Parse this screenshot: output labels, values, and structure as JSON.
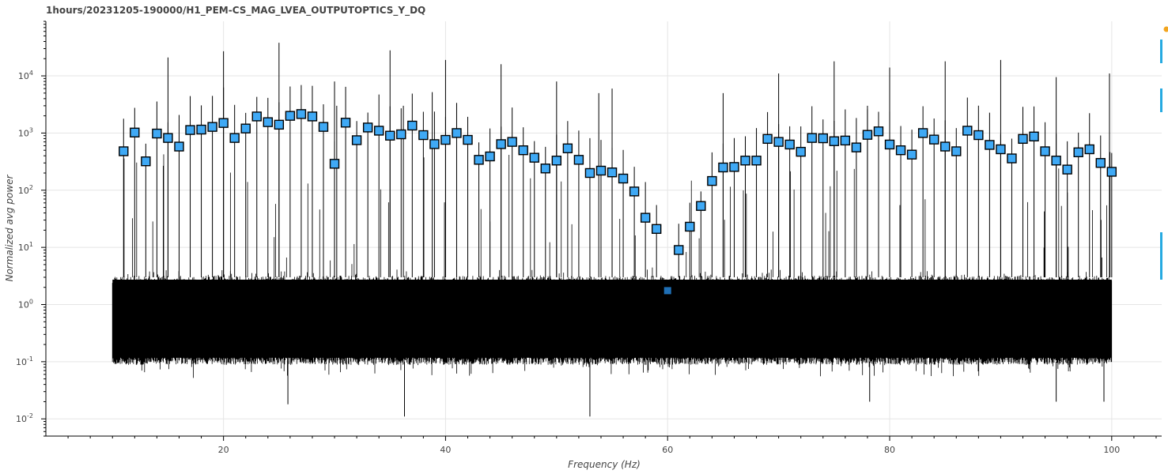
{
  "title": "1hours/20231205-190000/H1_PEM-CS_MAG_LVEA_OUTPUTOPTICS_Y_DQ",
  "colors": {
    "noise": "#000000",
    "marker_fill": "#3fa9f5",
    "marker_stroke": "#000000",
    "marker_special": "#1f6fb5",
    "grid": "#e5e5e5",
    "axis": "#000000",
    "toolbar_accent": "#26aae1",
    "toolbar_logo": "#f2a51f"
  },
  "toolbar": {
    "icons": [
      "bokeh-logo-icon",
      "pan-tool-icon",
      "zoom-tool-icon",
      "reset-tool-icon"
    ]
  },
  "chart_data": {
    "type": "scatter",
    "title": "1hours/20231205-190000/H1_PEM-CS_MAG_LVEA_OUTPUTOPTICS_Y_DQ",
    "xlabel": "Frequency (Hz)",
    "ylabel": "Normalized avg power",
    "yscale": "log",
    "xlim": [
      4,
      104.5
    ],
    "ylim": [
      0.005,
      90000
    ],
    "x_ticks": [
      20,
      40,
      60,
      80,
      100
    ],
    "x_tick_labels": [
      "20",
      "40",
      "60",
      "80",
      "100"
    ],
    "y_ticks": [
      0.01,
      0.1,
      1,
      10,
      100,
      1000,
      10000
    ],
    "y_tick_labels": [
      "10^-2",
      "10^-1",
      "10^0",
      "10^1",
      "10^2",
      "10^3",
      "10^4"
    ],
    "grid": true,
    "noise_band": {
      "x_range": [
        10,
        100
      ],
      "y_range": [
        0.1,
        3
      ],
      "typical": 0.6
    },
    "spikes": [
      {
        "x": 15,
        "y": 21000
      },
      {
        "x": 20,
        "y": 27000
      },
      {
        "x": 25,
        "y": 38000
      },
      {
        "x": 30,
        "y": 8000
      },
      {
        "x": 35,
        "y": 28000
      },
      {
        "x": 40,
        "y": 19000
      },
      {
        "x": 45,
        "y": 16000
      },
      {
        "x": 50,
        "y": 8000
      },
      {
        "x": 55,
        "y": 6000
      },
      {
        "x": 65,
        "y": 5000
      },
      {
        "x": 70,
        "y": 11000
      },
      {
        "x": 75,
        "y": 18000
      },
      {
        "x": 80,
        "y": 14000
      },
      {
        "x": 85,
        "y": 18000
      },
      {
        "x": 90,
        "y": 19000
      },
      {
        "x": 95,
        "y": 9500
      },
      {
        "x": 99.8,
        "y": 11000
      },
      {
        "x": 38.8,
        "y": 5200
      },
      {
        "x": 53.8,
        "y": 5000
      },
      {
        "x": 36.2,
        "y": 3000
      },
      {
        "x": 30.2,
        "y": 3000
      },
      {
        "x": 78,
        "y": 3000
      }
    ],
    "dips": [
      {
        "x": 36.3,
        "y": 0.011
      },
      {
        "x": 53,
        "y": 0.011
      },
      {
        "x": 25.8,
        "y": 0.018
      },
      {
        "x": 78.2,
        "y": 0.02
      },
      {
        "x": 95,
        "y": 0.02
      },
      {
        "x": 99.3,
        "y": 0.02
      }
    ],
    "series": [
      {
        "points": [
          [
            11,
            480
          ],
          [
            12,
            1020
          ],
          [
            13,
            320
          ],
          [
            14,
            980
          ],
          [
            15,
            820
          ],
          [
            16,
            580
          ],
          [
            17,
            1130
          ],
          [
            18,
            1150
          ],
          [
            19,
            1280
          ],
          [
            20,
            1500
          ],
          [
            21,
            820
          ],
          [
            22,
            1200
          ],
          [
            23,
            1950
          ],
          [
            24,
            1550
          ],
          [
            25,
            1400
          ],
          [
            26,
            2000
          ],
          [
            27,
            2150
          ],
          [
            28,
            1950
          ],
          [
            29,
            1280
          ],
          [
            30,
            290
          ],
          [
            31,
            1520
          ],
          [
            32,
            750
          ],
          [
            33,
            1250
          ],
          [
            34,
            1100
          ],
          [
            35,
            900
          ],
          [
            36,
            950
          ],
          [
            37,
            1350
          ],
          [
            38,
            920
          ],
          [
            39,
            640
          ],
          [
            40,
            760
          ],
          [
            41,
            1000
          ],
          [
            42,
            760
          ],
          [
            43,
            340
          ],
          [
            44,
            390
          ],
          [
            45,
            640
          ],
          [
            46,
            700
          ],
          [
            47,
            500
          ],
          [
            48,
            370
          ],
          [
            49,
            240
          ],
          [
            50,
            330
          ],
          [
            51,
            540
          ],
          [
            52,
            340
          ],
          [
            53,
            200
          ],
          [
            54,
            220
          ],
          [
            55,
            205
          ],
          [
            56,
            160
          ],
          [
            57,
            95
          ],
          [
            58,
            33
          ],
          [
            59,
            21
          ],
          [
            61,
            9
          ],
          [
            62,
            23
          ],
          [
            63,
            53
          ],
          [
            64,
            145
          ],
          [
            65,
            250
          ],
          [
            66,
            255
          ],
          [
            67,
            330
          ],
          [
            68,
            330
          ],
          [
            69,
            790
          ],
          [
            70,
            700
          ],
          [
            71,
            630
          ],
          [
            72,
            470
          ],
          [
            73,
            820
          ],
          [
            74,
            810
          ],
          [
            75,
            720
          ],
          [
            76,
            740
          ],
          [
            77,
            560
          ],
          [
            78,
            930
          ],
          [
            79,
            1070
          ],
          [
            80,
            630
          ],
          [
            81,
            500
          ],
          [
            82,
            420
          ],
          [
            83,
            1000
          ],
          [
            84,
            770
          ],
          [
            85,
            580
          ],
          [
            86,
            480
          ],
          [
            87,
            1100
          ],
          [
            88,
            920
          ],
          [
            89,
            620
          ],
          [
            90,
            520
          ],
          [
            91,
            360
          ],
          [
            92,
            790
          ],
          [
            93,
            870
          ],
          [
            94,
            480
          ],
          [
            95,
            330
          ],
          [
            96,
            230
          ],
          [
            97,
            460
          ],
          [
            98,
            520
          ],
          [
            99,
            300
          ],
          [
            100,
            210
          ]
        ]
      },
      {
        "points": [
          [
            60,
            1.75
          ]
        ]
      }
    ]
  }
}
